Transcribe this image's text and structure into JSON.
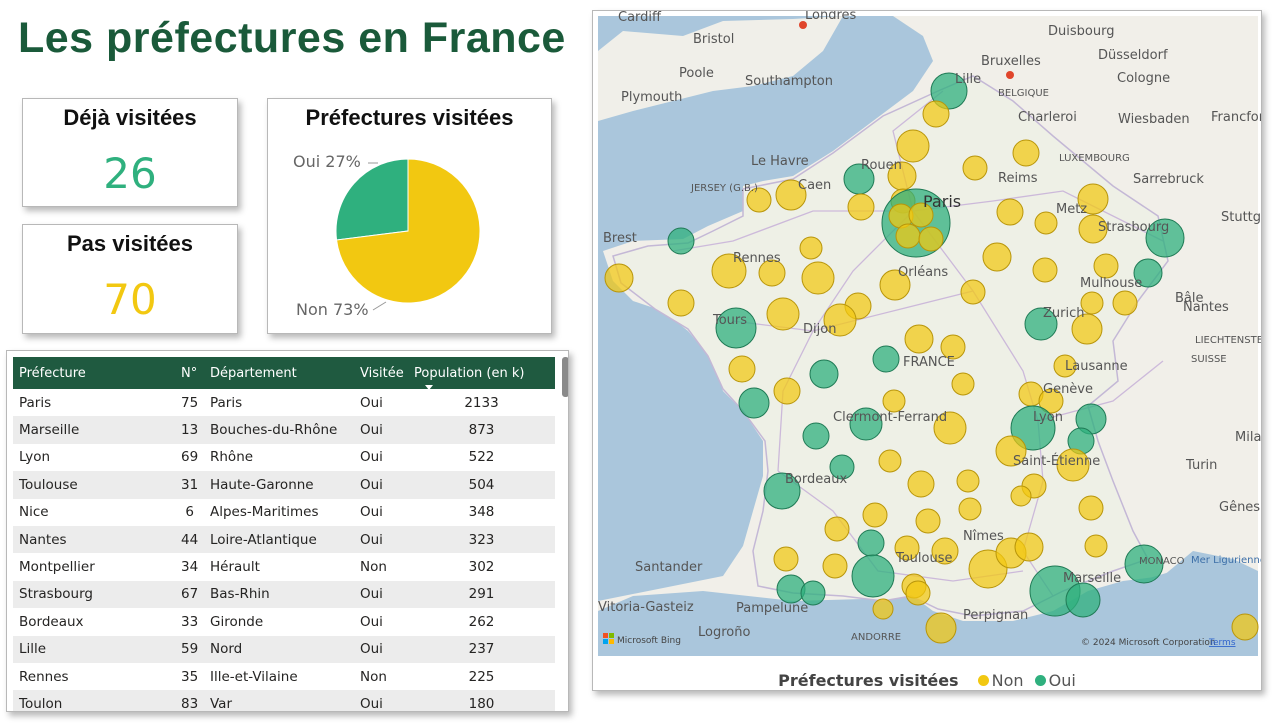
{
  "title": "Les préfectures en France",
  "kpi_visited": {
    "label": "Déjà visitées",
    "value": "26"
  },
  "kpi_not_visited": {
    "label": "Pas visitées",
    "value": "70"
  },
  "colors": {
    "oui": "#2fb07e",
    "non": "#f2c811",
    "header": "#1f5a40",
    "title": "#1a5a3a"
  },
  "chart_data": {
    "type": "pie",
    "title": "Préfectures visitées",
    "slices": [
      {
        "label": "Oui",
        "value": 27,
        "display": "Oui 27%"
      },
      {
        "label": "Non",
        "value": 73,
        "display": "Non 73%"
      }
    ]
  },
  "table": {
    "columns": [
      "Préfecture",
      "N°",
      "Département",
      "Visitée",
      "Population (en k)"
    ],
    "rows": [
      [
        "Paris",
        "75",
        "Paris",
        "Oui",
        "2133"
      ],
      [
        "Marseille",
        "13",
        "Bouches-du-Rhône",
        "Oui",
        "873"
      ],
      [
        "Lyon",
        "69",
        "Rhône",
        "Oui",
        "522"
      ],
      [
        "Toulouse",
        "31",
        "Haute-Garonne",
        "Oui",
        "504"
      ],
      [
        "Nice",
        "6",
        "Alpes-Maritimes",
        "Oui",
        "348"
      ],
      [
        "Nantes",
        "44",
        "Loire-Atlantique",
        "Oui",
        "323"
      ],
      [
        "Montpellier",
        "34",
        "Hérault",
        "Non",
        "302"
      ],
      [
        "Strasbourg",
        "67",
        "Bas-Rhin",
        "Oui",
        "291"
      ],
      [
        "Bordeaux",
        "33",
        "Gironde",
        "Oui",
        "262"
      ],
      [
        "Lille",
        "59",
        "Nord",
        "Oui",
        "237"
      ],
      [
        "Rennes",
        "35",
        "Ille-et-Vilaine",
        "Non",
        "225"
      ],
      [
        "Toulon",
        "83",
        "Var",
        "Oui",
        "180"
      ]
    ]
  },
  "map": {
    "labels": [
      "Cardiff",
      "Bristol",
      "Poole",
      "Southampton",
      "Plymouth",
      "Londres",
      "Duisbourg",
      "Düsseldorf",
      "Bruxelles",
      "Cologne",
      "BELGIQUE",
      "Lille",
      "Charleroi",
      "Wiesbaden",
      "Francfort",
      "LUXEMBOURG",
      "Le Havre",
      "Rouen",
      "Reims",
      "Sarrebruck",
      "JERSEY (G.B.)",
      "Caen",
      "Paris",
      "Metz",
      "Strasbourg",
      "Brest",
      "Rennes",
      "Orléans",
      "Mulhouse",
      "Bâle",
      "Stuttgart",
      "Nantes",
      "Tours",
      "Dijon",
      "Zurich",
      "LIECHTENSTEIN",
      "FRANCE",
      "SUISSE",
      "Lausanne",
      "Genève",
      "Clermont-Ferrand",
      "Lyon",
      "Milan",
      "Saint-Étienne",
      "Turin",
      "Bordeaux",
      "Gênes",
      "Nîmes",
      "Toulouse",
      "Mer Ligurienne",
      "MONACO",
      "Santander",
      "Marseille",
      "Vitoria-Gasteiz",
      "Pampelune",
      "Perpignan",
      "Logroño",
      "ANDORRE"
    ],
    "attribution": "© 2024 Microsoft Corporation",
    "terms": "Terms",
    "bing": "Microsoft Bing",
    "legend_title": "Préfectures visitées",
    "legend_items": [
      {
        "label": "Non",
        "color": "#f2c811"
      },
      {
        "label": "Oui",
        "color": "#2fb07e"
      }
    ]
  }
}
